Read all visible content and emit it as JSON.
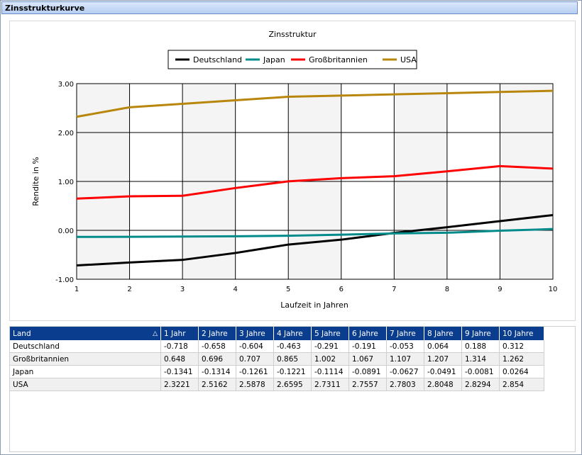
{
  "window": {
    "title": "Zinsstrukturkurve"
  },
  "chart_data": {
    "type": "line",
    "title": "Zinsstruktur",
    "xlabel": "Laufzeit in Jahren",
    "ylabel": "Rendite in %",
    "x": [
      1,
      2,
      3,
      4,
      5,
      6,
      7,
      8,
      9,
      10
    ],
    "xlim": [
      1,
      10
    ],
    "ylim": [
      -1.0,
      3.0
    ],
    "yticks": [
      -1.0,
      0.0,
      1.0,
      2.0,
      3.0
    ],
    "ytick_labels": [
      "-1.00",
      "0.00",
      "1.00",
      "2.00",
      "3.00"
    ],
    "xtick_labels": [
      "1",
      "2",
      "3",
      "4",
      "5",
      "6",
      "7",
      "8",
      "9",
      "10"
    ],
    "grid": true,
    "legend_placement": "top-center",
    "series": [
      {
        "name": "Deutschland",
        "color": "#000000",
        "values": [
          -0.718,
          -0.658,
          -0.604,
          -0.463,
          -0.291,
          -0.191,
          -0.053,
          0.064,
          0.188,
          0.312
        ]
      },
      {
        "name": "Japan",
        "color": "#008b8b",
        "values": [
          -0.1341,
          -0.1314,
          -0.1261,
          -0.1221,
          -0.1114,
          -0.0891,
          -0.0627,
          -0.0491,
          -0.0081,
          0.0264
        ]
      },
      {
        "name": "Großbritannien",
        "color": "#ff0000",
        "values": [
          0.648,
          0.696,
          0.707,
          0.865,
          1.002,
          1.067,
          1.107,
          1.207,
          1.314,
          1.262
        ]
      },
      {
        "name": "USA",
        "color": "#b8860b",
        "values": [
          2.3221,
          2.5162,
          2.5878,
          2.6595,
          2.7311,
          2.7557,
          2.7803,
          2.8048,
          2.8294,
          2.854
        ]
      }
    ]
  },
  "table": {
    "headers": [
      "Land",
      "1 Jahr",
      "2 Jahre",
      "3 Jahre",
      "4 Jahre",
      "5 Jahre",
      "6 Jahre",
      "7 Jahre",
      "8 Jahre",
      "9 Jahre",
      "10 Jahre"
    ],
    "sort_icon": "sort-ascending-icon",
    "rows": [
      [
        "Deutschland",
        "-0.718",
        "-0.658",
        "-0.604",
        "-0.463",
        "-0.291",
        "-0.191",
        "-0.053",
        "0.064",
        "0.188",
        "0.312"
      ],
      [
        "Großbritannien",
        "0.648",
        "0.696",
        "0.707",
        "0.865",
        "1.002",
        "1.067",
        "1.107",
        "1.207",
        "1.314",
        "1.262"
      ],
      [
        "Japan",
        "-0.1341",
        "-0.1314",
        "-0.1261",
        "-0.1221",
        "-0.1114",
        "-0.0891",
        "-0.0627",
        "-0.0491",
        "-0.0081",
        "0.0264"
      ],
      [
        "USA",
        "2.3221",
        "2.5162",
        "2.5878",
        "2.6595",
        "2.7311",
        "2.7557",
        "2.7803",
        "2.8048",
        "2.8294",
        "2.854"
      ]
    ]
  }
}
